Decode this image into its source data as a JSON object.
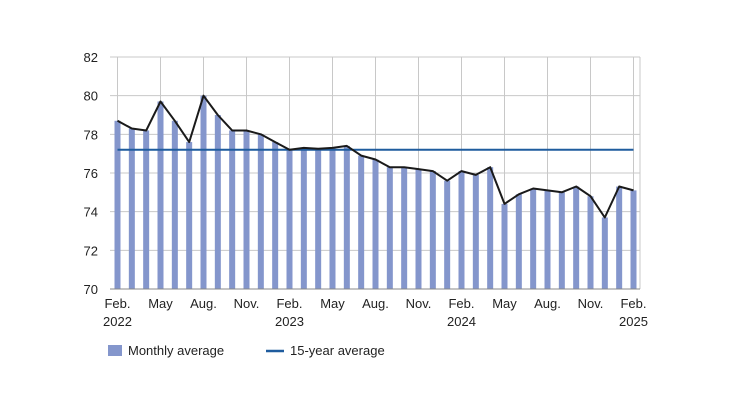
{
  "chart_data": {
    "type": "bar",
    "ylim": [
      70,
      82
    ],
    "yticks": [
      70,
      72,
      74,
      76,
      78,
      80,
      82
    ],
    "grid": true,
    "legend_placement": "bottom-left",
    "colors": {
      "bar": "#8496cc",
      "line": "#1a1a1a",
      "average": "#1f5c9e",
      "grid": "#c8c8c8"
    },
    "x_tick_labels": [
      {
        "index": 0,
        "label": "Feb.",
        "year": "2022"
      },
      {
        "index": 3,
        "label": "May",
        "year": ""
      },
      {
        "index": 6,
        "label": "Aug.",
        "year": ""
      },
      {
        "index": 9,
        "label": "Nov.",
        "year": ""
      },
      {
        "index": 12,
        "label": "Feb.",
        "year": "2023"
      },
      {
        "index": 15,
        "label": "May",
        "year": ""
      },
      {
        "index": 18,
        "label": "Aug.",
        "year": ""
      },
      {
        "index": 21,
        "label": "Nov.",
        "year": ""
      },
      {
        "index": 24,
        "label": "Feb.",
        "year": "2024"
      },
      {
        "index": 27,
        "label": "May",
        "year": ""
      },
      {
        "index": 30,
        "label": "Aug.",
        "year": ""
      },
      {
        "index": 33,
        "label": "Nov.",
        "year": ""
      },
      {
        "index": 36,
        "label": "Feb.",
        "year": "2025"
      }
    ],
    "series": [
      {
        "name": "Monthly average",
        "type": "bar+line",
        "values": [
          78.7,
          78.3,
          78.2,
          79.7,
          78.7,
          77.6,
          80.0,
          79.0,
          78.2,
          78.2,
          78.0,
          77.6,
          77.2,
          77.3,
          77.25,
          77.3,
          77.4,
          76.9,
          76.7,
          76.3,
          76.3,
          76.2,
          76.1,
          75.6,
          76.1,
          75.9,
          76.3,
          74.4,
          74.9,
          75.2,
          75.1,
          75.0,
          75.3,
          74.8,
          73.7,
          75.3,
          75.1
        ]
      },
      {
        "name": "15-year average",
        "type": "line",
        "value": 77.2
      }
    ]
  }
}
